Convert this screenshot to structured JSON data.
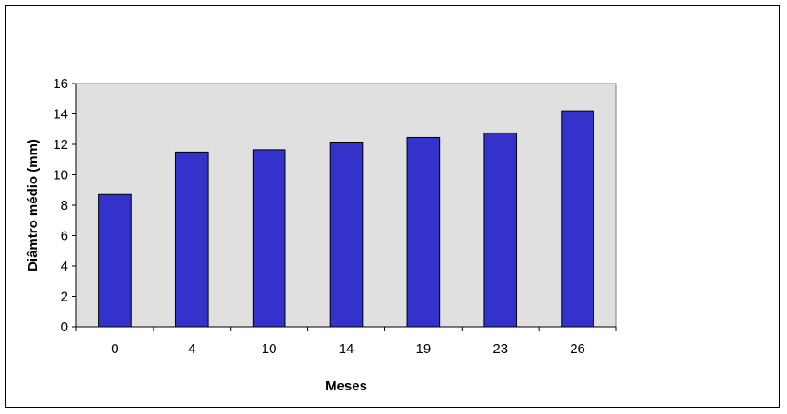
{
  "chart_data": {
    "type": "bar",
    "title": "",
    "xlabel": "Meses",
    "ylabel": "Diâmtro médio (mm)",
    "categories": [
      "0",
      "4",
      "10",
      "14",
      "19",
      "23",
      "26"
    ],
    "values": [
      8.7,
      11.5,
      11.65,
      12.15,
      12.45,
      12.75,
      14.2
    ],
    "ylim": [
      0,
      16
    ],
    "yticks": [
      "0",
      "2",
      "4",
      "6",
      "8",
      "10",
      "12",
      "14",
      "16"
    ],
    "grid": false,
    "legend": "none",
    "colors": {
      "bar_fill": "#3333cc",
      "bar_stroke": "#000000",
      "plot_background": "#e0e0e0",
      "page_background": "#ffffff"
    }
  }
}
